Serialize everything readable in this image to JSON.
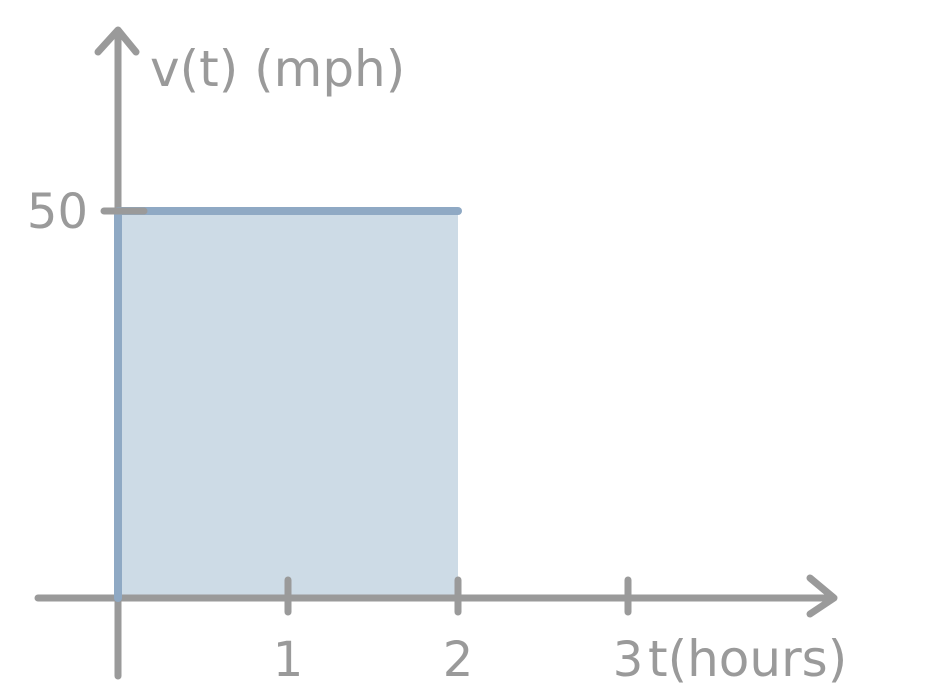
{
  "chart_data": {
    "type": "area",
    "title": "",
    "ylabel": "v(t) (mph)",
    "xlabel": "t(hours)",
    "xlim": [
      0,
      3
    ],
    "ylim": [
      0,
      50
    ],
    "x_ticks": [
      {
        "value": 1,
        "label": "1"
      },
      {
        "value": 2,
        "label": "2"
      },
      {
        "value": 3,
        "label": "3"
      }
    ],
    "y_ticks": [
      {
        "value": 50,
        "label": "50"
      }
    ],
    "grid": false,
    "series": [
      {
        "points": [
          {
            "x": 0,
            "y": 50
          },
          {
            "x": 2,
            "y": 50
          }
        ],
        "shaded_to_zero": true,
        "line_color": "#8fa9c4",
        "fill_color": "#cddbe6"
      }
    ],
    "axis_color": "#9a9a9a"
  }
}
